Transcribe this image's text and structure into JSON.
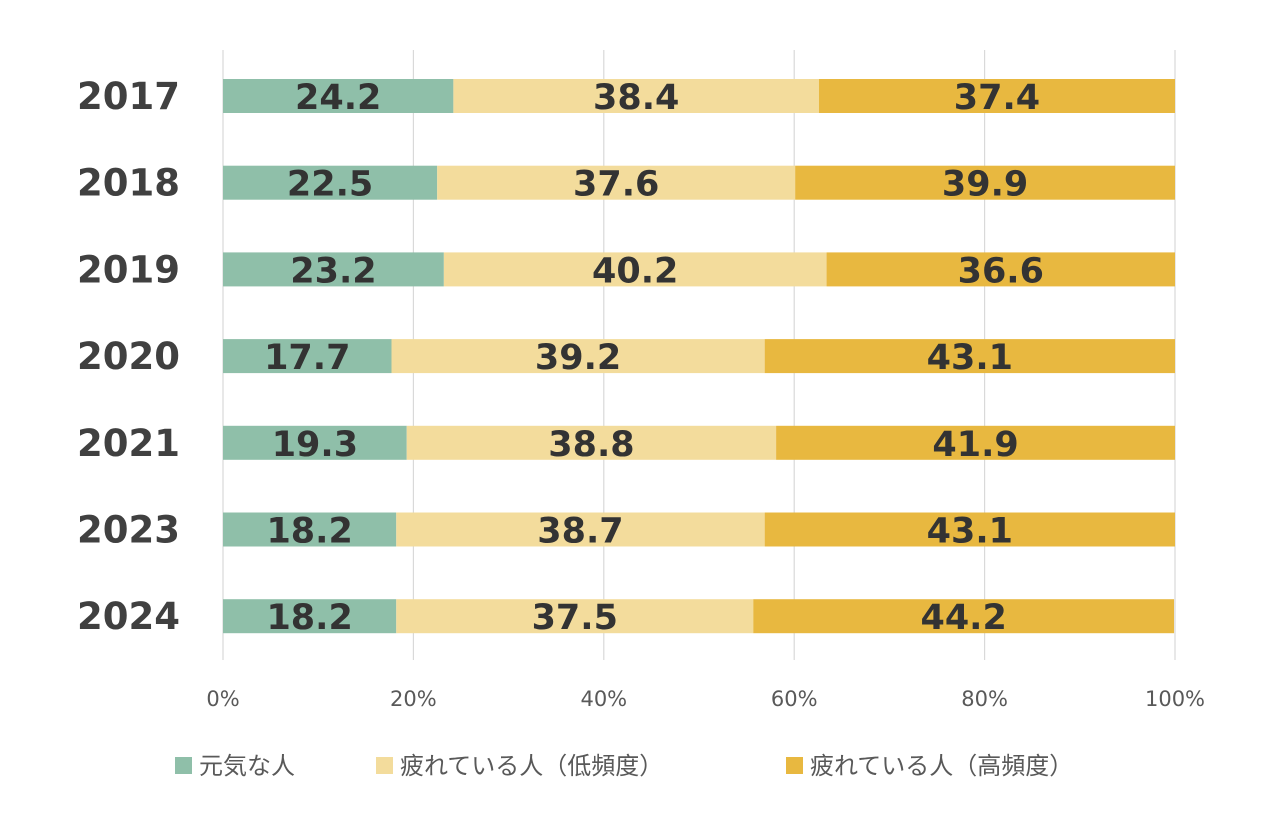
{
  "chart_data": {
    "type": "bar",
    "orientation": "horizontal",
    "stacked": "percent",
    "categories": [
      "2017",
      "2018",
      "2019",
      "2020",
      "2021",
      "2023",
      "2024"
    ],
    "series": [
      {
        "name": "元気な人",
        "color": "#8fbfa9",
        "values": [
          24.2,
          22.5,
          23.2,
          17.7,
          19.3,
          18.2,
          18.2
        ]
      },
      {
        "name": "疲れている人（低頻度）",
        "color": "#f3dc9c",
        "values": [
          38.4,
          37.6,
          40.2,
          39.2,
          38.8,
          38.7,
          37.5
        ]
      },
      {
        "name": "疲れている人（高頻度）",
        "color": "#e8b840",
        "values": [
          37.4,
          39.9,
          36.6,
          43.1,
          41.9,
          43.1,
          44.2
        ]
      }
    ],
    "x_ticks": [
      "0%",
      "20%",
      "40%",
      "60%",
      "80%",
      "100%"
    ],
    "xlim": [
      0,
      100
    ],
    "grid": true,
    "legend_position": "bottom",
    "data_labels": true
  }
}
